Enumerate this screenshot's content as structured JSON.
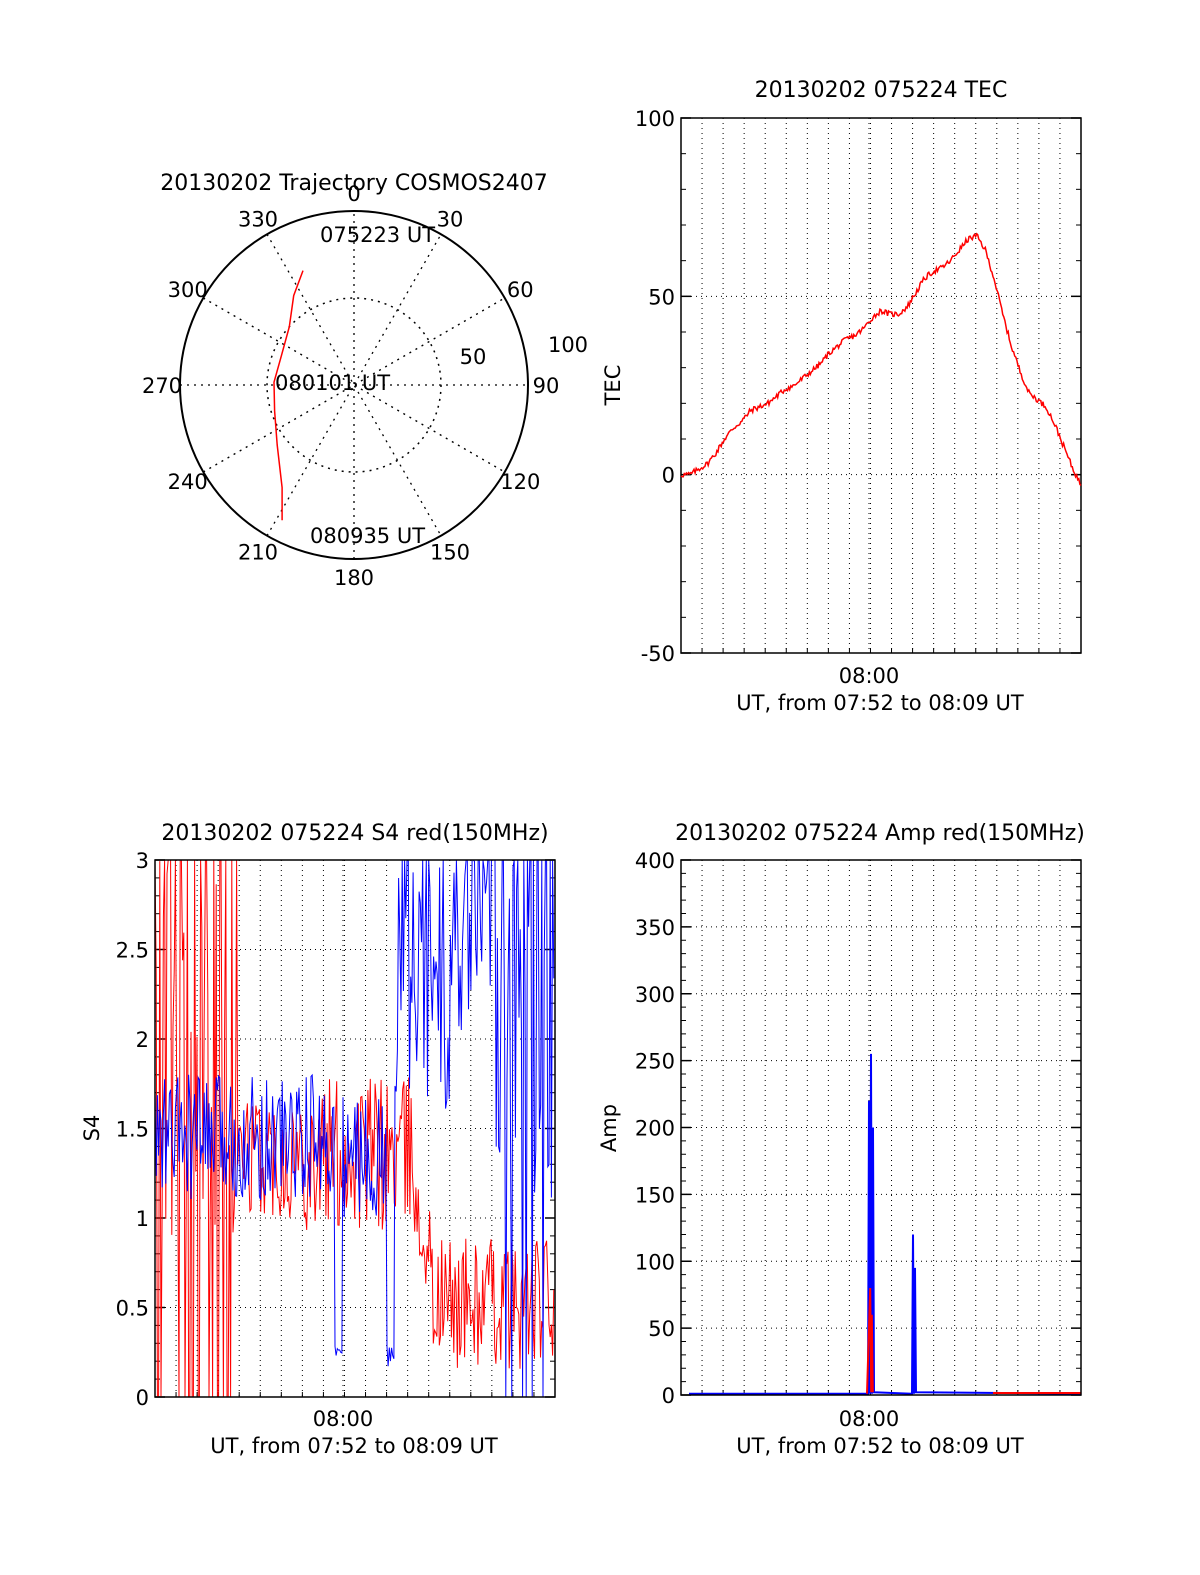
{
  "colors": {
    "red": "#ff0000",
    "blue": "#0000ff",
    "axis": "#000000",
    "grid": "#000000"
  },
  "chart_data": [
    {
      "id": "trajectory",
      "type": "polar",
      "title": "20130202 Trajectory COSMOS2407",
      "azimuth_labels": [
        "0",
        "30",
        "60",
        "90",
        "120",
        "150",
        "180",
        "210",
        "240",
        "270",
        "300",
        "330"
      ],
      "radial_labels": [
        "50",
        "100"
      ],
      "radial_range": [
        0,
        100
      ],
      "grid": true,
      "series": [
        {
          "color": "red",
          "points": [
            {
              "az": 336,
              "r": 72
            },
            {
              "az": 326,
              "r": 62
            },
            {
              "az": 312,
              "r": 50
            },
            {
              "az": 292,
              "r": 45
            },
            {
              "az": 272,
              "r": 46
            },
            {
              "az": 252,
              "r": 48
            },
            {
              "az": 232,
              "r": 56
            },
            {
              "az": 215,
              "r": 72
            },
            {
              "az": 208,
              "r": 88
            }
          ]
        }
      ],
      "annotations": [
        "075223 UT",
        "080101 UT",
        "080935 UT"
      ]
    },
    {
      "id": "tec",
      "type": "line",
      "title": "20130202 075224 TEC",
      "ylabel": "TEC",
      "xlabel": "UT, from 07:52 to 08:09 UT",
      "xtick_label": "08:00",
      "yticks": [
        "-50",
        "0",
        "50",
        "100"
      ],
      "ylim": [
        -50,
        100
      ],
      "grid": true,
      "series": [
        {
          "color": "red",
          "points": [
            [
              0,
              0
            ],
            [
              0.5,
              0
            ],
            [
              1,
              1.5
            ],
            [
              1.5,
              3
            ],
            [
              2,
              6
            ],
            [
              2.5,
              10
            ],
            [
              3,
              13
            ],
            [
              3.5,
              15
            ],
            [
              4,
              18
            ],
            [
              4.5,
              19
            ],
            [
              5,
              20
            ],
            [
              5.5,
              22
            ],
            [
              6,
              24
            ],
            [
              6.5,
              25
            ],
            [
              7,
              27
            ],
            [
              7.5,
              29
            ],
            [
              8,
              31
            ],
            [
              8.5,
              34
            ],
            [
              9,
              36
            ],
            [
              9.5,
              38
            ],
            [
              10,
              39
            ],
            [
              10.5,
              41
            ],
            [
              11,
              44
            ],
            [
              11.5,
              46
            ],
            [
              12,
              45
            ],
            [
              12.5,
              45
            ],
            [
              13,
              47
            ],
            [
              13.5,
              51
            ],
            [
              14,
              55
            ],
            [
              14.5,
              57
            ],
            [
              15,
              58
            ],
            [
              15.5,
              60
            ],
            [
              16,
              63
            ],
            [
              16.5,
              66
            ],
            [
              17,
              67
            ],
            [
              17.5,
              63
            ],
            [
              18,
              55
            ],
            [
              18.5,
              45
            ],
            [
              19,
              36
            ],
            [
              19.5,
              29
            ],
            [
              20,
              23
            ],
            [
              20.5,
              21
            ],
            [
              21,
              19
            ],
            [
              21.5,
              14
            ],
            [
              22,
              8
            ],
            [
              22.5,
              2
            ],
            [
              23,
              -3
            ]
          ]
        }
      ]
    },
    {
      "id": "s4",
      "type": "line",
      "title": "20130202 075224 S4 red(150MHz)",
      "ylabel": "S4",
      "xlabel": "UT, from 07:52 to 08:09 UT",
      "xtick_label": "08:00",
      "yticks": [
        "0",
        "0.5",
        "1",
        "1.5",
        "2",
        "2.5",
        "3"
      ],
      "ylim": [
        0,
        3
      ],
      "grid": true,
      "series": [
        {
          "color": "red",
          "segments": [
            [
              0,
              0.3,
              0.9,
              3.0
            ],
            [
              0.3,
              0.55,
              1.0,
              1.7
            ],
            [
              0.55,
              0.95,
              0.9,
              1.8
            ],
            [
              0.95,
              1.0,
              0.6,
              1.2
            ],
            [
              1.0,
              1.45,
              0.15,
              0.9
            ]
          ]
        },
        {
          "color": "blue",
          "segments": [
            [
              0,
              0.45,
              1.1,
              1.8
            ],
            [
              0.45,
              0.47,
              0.2,
              0.3
            ],
            [
              0.47,
              0.58,
              1.0,
              1.7
            ],
            [
              0.58,
              0.6,
              0.15,
              0.3
            ],
            [
              0.6,
              0.85,
              1.6,
              3.0
            ],
            [
              0.85,
              1.0,
              1.0,
              3.0
            ]
          ]
        }
      ]
    },
    {
      "id": "amp",
      "type": "line",
      "title": "20130202 075224 Amp red(150MHz)",
      "ylabel": "Amp",
      "xlabel": "UT, from 07:52 to 08:09 UT",
      "xtick_label": "08:00",
      "yticks": [
        "0",
        "50",
        "100",
        "150",
        "200",
        "250",
        "300",
        "350",
        "400"
      ],
      "ylim": [
        0,
        400
      ],
      "grid": true,
      "series": [
        {
          "color": "blue",
          "spikes": [
            [
              0.47,
              220
            ],
            [
              0.475,
              255
            ],
            [
              0.48,
              200
            ],
            [
              0.58,
              120
            ],
            [
              0.585,
              95
            ]
          ]
        },
        {
          "color": "red",
          "spikes": [
            [
              0.473,
              80
            ],
            [
              0.477,
              60
            ]
          ],
          "tail": 1.5
        }
      ]
    }
  ]
}
